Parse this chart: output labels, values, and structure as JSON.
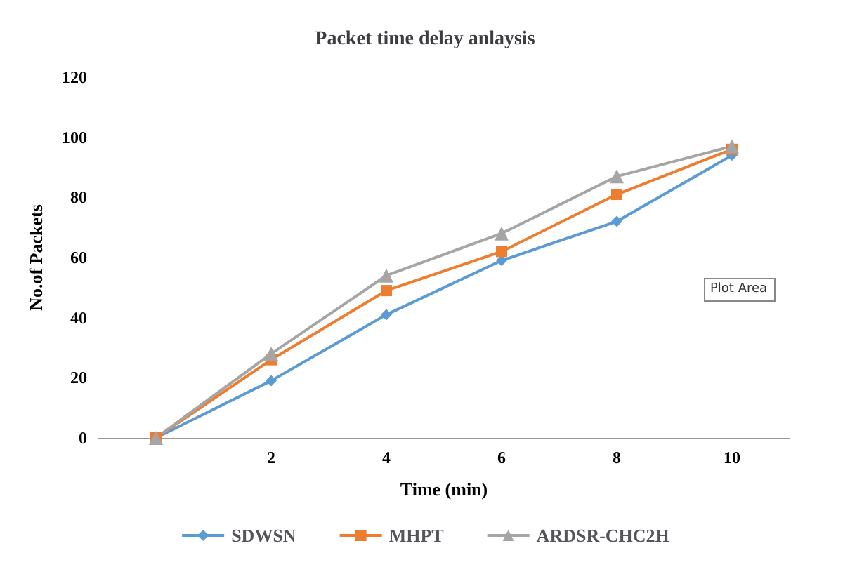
{
  "chart_data": {
    "type": "line",
    "title": "Packet time delay anlaysis",
    "xlabel": "Time (min)",
    "ylabel": "No.of Packets",
    "categories": [
      null,
      "2",
      "4",
      "6",
      "8",
      "10"
    ],
    "series": [
      {
        "name": "SDWSN",
        "color": "#5b9bd5",
        "marker": "diamond",
        "values": [
          0,
          19,
          41,
          59,
          72,
          94
        ]
      },
      {
        "name": "MHPT",
        "color": "#ed7d31",
        "marker": "square",
        "values": [
          0,
          26,
          49,
          62,
          81,
          96
        ]
      },
      {
        "name": "ARDSR-CHC2H",
        "color": "#a5a5a5",
        "marker": "triangle",
        "values": [
          0,
          28,
          54,
          68,
          87,
          97
        ]
      }
    ],
    "ylim": [
      0,
      120
    ],
    "yticks": [
      0,
      20,
      40,
      60,
      80,
      100,
      120
    ],
    "grid": false,
    "legend": "bottom",
    "line_style": "solid",
    "annotations": [
      "Plot Area"
    ]
  }
}
